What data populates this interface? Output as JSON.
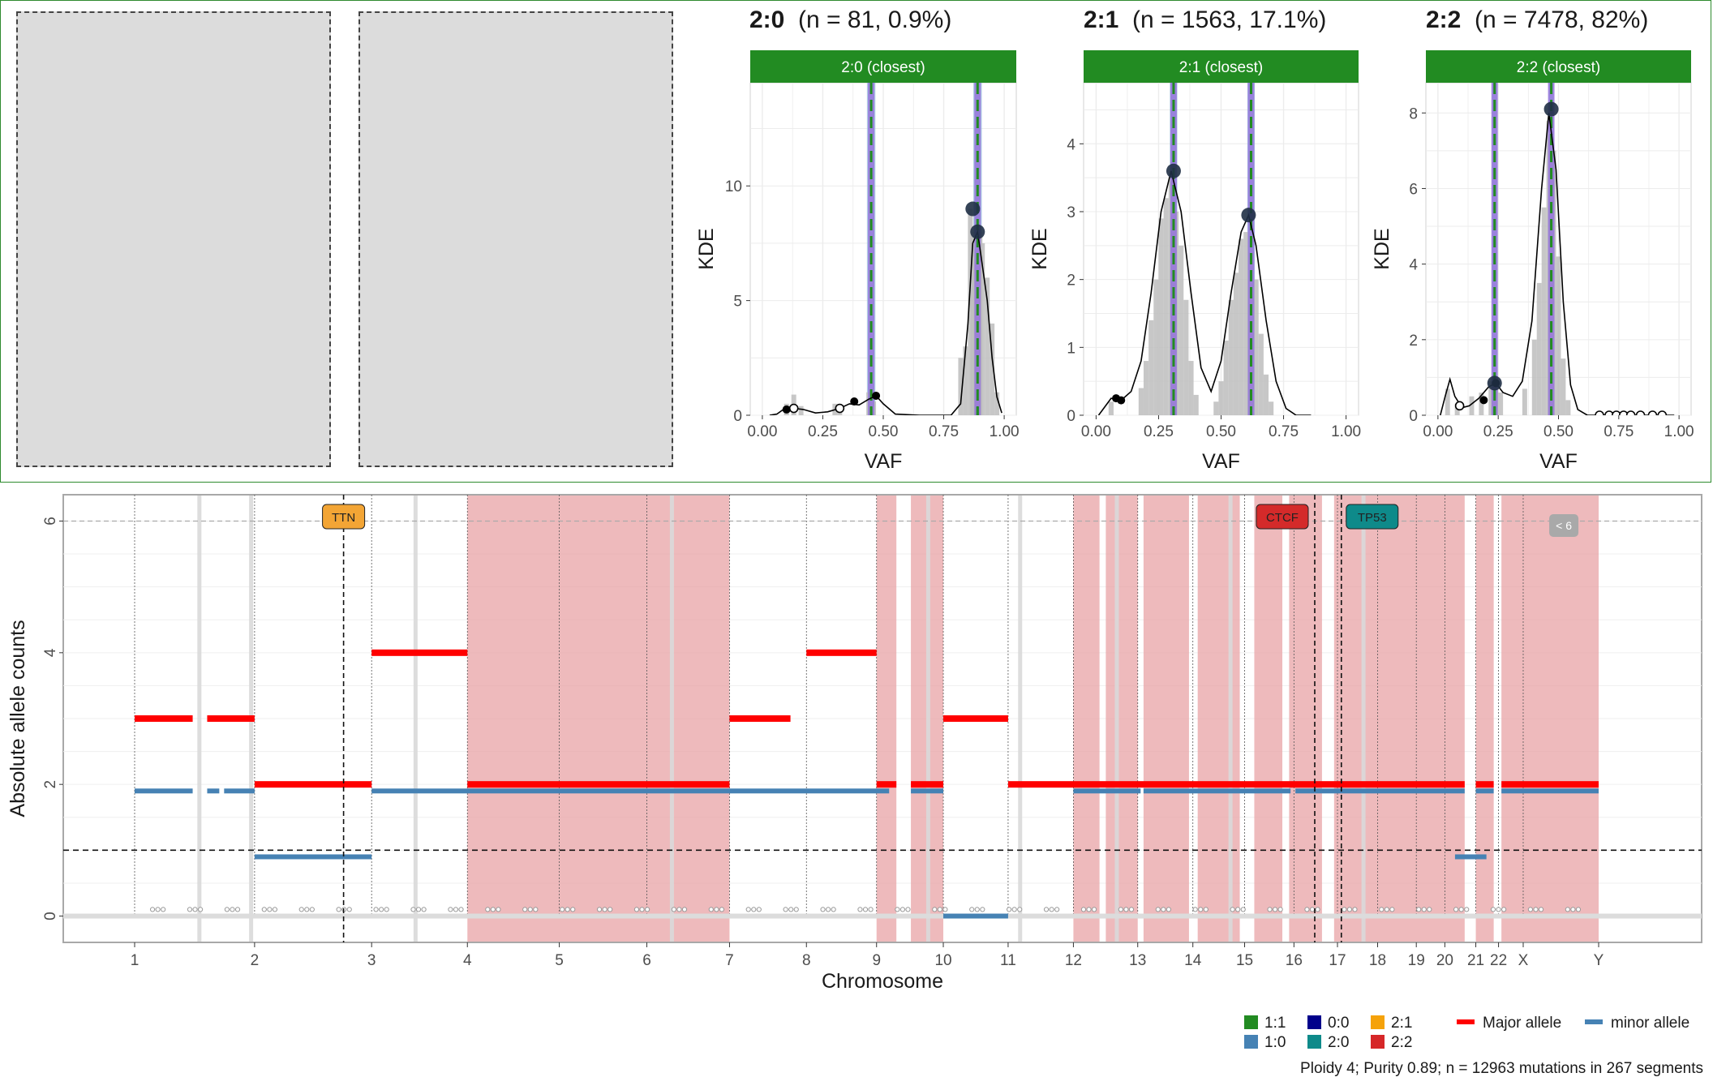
{
  "panels": [
    {
      "key": "2:0",
      "title_bold": "2:0",
      "title_rest": "(n = 81, 0.9%)",
      "strip": "2:0 (closest)",
      "ylim": [
        0,
        14.5
      ],
      "yticks": [
        0,
        5,
        10
      ],
      "peaks_expected": [
        0.45,
        0.89
      ],
      "peak_band_width": 0.035,
      "hist": [
        [
          0.1,
          0.5
        ],
        [
          0.13,
          0.9
        ],
        [
          0.16,
          0.4
        ],
        [
          0.3,
          0.5
        ],
        [
          0.32,
          0.3
        ],
        [
          0.44,
          1.0
        ],
        [
          0.46,
          0.6
        ],
        [
          0.82,
          2.5
        ],
        [
          0.84,
          3.0
        ],
        [
          0.86,
          9.0
        ],
        [
          0.87,
          8.0
        ],
        [
          0.88,
          7.0
        ],
        [
          0.9,
          8.0
        ],
        [
          0.91,
          7.5
        ],
        [
          0.93,
          6.0
        ],
        [
          0.95,
          4.0
        ],
        [
          0.97,
          1.0
        ]
      ],
      "kde": [
        [
          0.03,
          0.0
        ],
        [
          0.06,
          0.05
        ],
        [
          0.1,
          0.35
        ],
        [
          0.13,
          0.3
        ],
        [
          0.17,
          0.25
        ],
        [
          0.22,
          0.1
        ],
        [
          0.27,
          0.15
        ],
        [
          0.32,
          0.3
        ],
        [
          0.36,
          0.5
        ],
        [
          0.4,
          0.45
        ],
        [
          0.44,
          0.7
        ],
        [
          0.47,
          0.85
        ],
        [
          0.5,
          0.5
        ],
        [
          0.55,
          0.05
        ],
        [
          0.65,
          0.0
        ],
        [
          0.78,
          0.0
        ],
        [
          0.82,
          0.5
        ],
        [
          0.85,
          4.0
        ],
        [
          0.87,
          7.5
        ],
        [
          0.89,
          8.0
        ],
        [
          0.91,
          6.5
        ],
        [
          0.93,
          5.0
        ],
        [
          0.95,
          2.5
        ],
        [
          0.97,
          0.8
        ],
        [
          0.99,
          0.1
        ]
      ],
      "points_filled": [
        [
          0.1,
          0.25
        ],
        [
          0.38,
          0.6
        ],
        [
          0.47,
          0.85
        ]
      ],
      "points_open": [
        [
          0.13,
          0.3
        ],
        [
          0.32,
          0.3
        ]
      ],
      "points_big": [
        [
          0.87,
          9.0
        ],
        [
          0.89,
          8.0
        ]
      ]
    },
    {
      "key": "2:1",
      "title_bold": "2:1",
      "title_rest": "(n = 1563, 17.1%)",
      "strip": "2:1 (closest)",
      "ylim": [
        0,
        4.9
      ],
      "yticks": [
        0,
        1,
        2,
        3,
        4
      ],
      "peaks_expected": [
        0.31,
        0.62
      ],
      "peak_band_width": 0.03,
      "hist": [
        [
          0.06,
          0.2
        ],
        [
          0.18,
          0.4
        ],
        [
          0.2,
          0.8
        ],
        [
          0.22,
          1.4
        ],
        [
          0.24,
          2.0
        ],
        [
          0.26,
          2.9
        ],
        [
          0.28,
          3.2
        ],
        [
          0.3,
          3.5
        ],
        [
          0.32,
          3.0
        ],
        [
          0.34,
          2.5
        ],
        [
          0.36,
          1.7
        ],
        [
          0.38,
          0.8
        ],
        [
          0.4,
          0.3
        ],
        [
          0.48,
          0.2
        ],
        [
          0.5,
          0.5
        ],
        [
          0.52,
          1.1
        ],
        [
          0.54,
          1.7
        ],
        [
          0.56,
          2.1
        ],
        [
          0.58,
          2.6
        ],
        [
          0.6,
          2.7
        ],
        [
          0.62,
          2.4
        ],
        [
          0.64,
          2.0
        ],
        [
          0.66,
          1.2
        ],
        [
          0.68,
          0.6
        ],
        [
          0.7,
          0.2
        ]
      ],
      "kde": [
        [
          0.01,
          0.0
        ],
        [
          0.03,
          0.1
        ],
        [
          0.06,
          0.25
        ],
        [
          0.1,
          0.22
        ],
        [
          0.14,
          0.35
        ],
        [
          0.18,
          0.8
        ],
        [
          0.22,
          1.8
        ],
        [
          0.26,
          3.0
        ],
        [
          0.3,
          3.6
        ],
        [
          0.34,
          3.0
        ],
        [
          0.38,
          1.8
        ],
        [
          0.42,
          0.7
        ],
        [
          0.46,
          0.35
        ],
        [
          0.5,
          0.8
        ],
        [
          0.54,
          1.8
        ],
        [
          0.58,
          2.7
        ],
        [
          0.61,
          2.95
        ],
        [
          0.64,
          2.5
        ],
        [
          0.68,
          1.4
        ],
        [
          0.72,
          0.5
        ],
        [
          0.76,
          0.1
        ],
        [
          0.8,
          0.0
        ],
        [
          0.86,
          0.0
        ]
      ],
      "points_filled": [
        [
          0.08,
          0.25
        ],
        [
          0.1,
          0.22
        ]
      ],
      "points_open": [],
      "points_big": [
        [
          0.31,
          3.6
        ],
        [
          0.61,
          2.95
        ]
      ]
    },
    {
      "key": "2:2",
      "title_bold": "2:2",
      "title_rest": "(n = 7478, 82%)",
      "strip": "2:2 (closest)",
      "ylim": [
        0,
        8.8
      ],
      "yticks": [
        0,
        2,
        4,
        6,
        8
      ],
      "peaks_expected": [
        0.235,
        0.47
      ],
      "peak_band_width": 0.02,
      "hist": [
        [
          0.04,
          0.7
        ],
        [
          0.08,
          0.3
        ],
        [
          0.14,
          0.5
        ],
        [
          0.18,
          0.6
        ],
        [
          0.22,
          0.9
        ],
        [
          0.24,
          1.0
        ],
        [
          0.26,
          0.6
        ],
        [
          0.36,
          0.7
        ],
        [
          0.4,
          2.0
        ],
        [
          0.42,
          3.5
        ],
        [
          0.44,
          5.5
        ],
        [
          0.46,
          7.8
        ],
        [
          0.48,
          7.0
        ],
        [
          0.5,
          4.2
        ],
        [
          0.52,
          1.5
        ],
        [
          0.54,
          0.4
        ]
      ],
      "kde": [
        [
          0.01,
          0.0
        ],
        [
          0.03,
          0.5
        ],
        [
          0.05,
          0.95
        ],
        [
          0.07,
          0.5
        ],
        [
          0.1,
          0.2
        ],
        [
          0.13,
          0.25
        ],
        [
          0.17,
          0.45
        ],
        [
          0.21,
          0.75
        ],
        [
          0.24,
          0.85
        ],
        [
          0.27,
          0.6
        ],
        [
          0.31,
          0.5
        ],
        [
          0.35,
          0.9
        ],
        [
          0.39,
          2.5
        ],
        [
          0.43,
          6.0
        ],
        [
          0.46,
          8.0
        ],
        [
          0.49,
          6.5
        ],
        [
          0.52,
          3.0
        ],
        [
          0.55,
          0.8
        ],
        [
          0.58,
          0.15
        ],
        [
          0.62,
          0.0
        ],
        [
          0.7,
          0.0
        ],
        [
          0.98,
          0.0
        ]
      ],
      "points_filled": [
        [
          0.19,
          0.4
        ],
        [
          0.24,
          0.85
        ]
      ],
      "points_open": [
        [
          0.09,
          0.25
        ],
        [
          0.67,
          0.0
        ],
        [
          0.71,
          0.0
        ],
        [
          0.74,
          0.0
        ],
        [
          0.77,
          0.0
        ],
        [
          0.8,
          0.0
        ],
        [
          0.84,
          0.0
        ],
        [
          0.89,
          0.0
        ],
        [
          0.93,
          0.0
        ]
      ],
      "points_big": [
        [
          0.235,
          0.85
        ],
        [
          0.47,
          8.1
        ]
      ]
    }
  ],
  "kde_axis": {
    "xlabel": "VAF",
    "ylabel": "KDE",
    "xticks": [
      "0.00",
      "0.25",
      "0.50",
      "0.75",
      "1.00"
    ]
  },
  "genome": {
    "ylabel": "Absolute allele counts",
    "xlabel": "Chromosome",
    "yticks": [
      0,
      2,
      4,
      6
    ],
    "ylim": [
      -0.4,
      6.4
    ],
    "chromosomes": [
      "1",
      "2",
      "3",
      "4",
      "5",
      "6",
      "7",
      "8",
      "9",
      "10",
      "11",
      "12",
      "13",
      "14",
      "15",
      "16",
      "17",
      "18",
      "19",
      "20",
      "21",
      "22",
      "X",
      "Y"
    ],
    "chrom_bounds": [
      0,
      248,
      490,
      688,
      878,
      1059,
      1230,
      1389,
      1534,
      1672,
      1806,
      1941,
      2074,
      2188,
      2295,
      2397,
      2487,
      2570,
      2650,
      2709,
      2773,
      2820,
      2871,
      3027,
      3084
    ],
    "centromeres": [
      133,
      240,
      580,
      1110,
      1640,
      1830,
      2030,
      2265,
      2540
    ],
    "gene_marks": [
      {
        "label": "TTN",
        "pos": 432,
        "color": "#f3a535"
      },
      {
        "label": "CTCF",
        "pos": 2440,
        "color": "#d42a2a"
      },
      {
        "label": "TP53",
        "pos": 2495,
        "color": "#0e8a8a"
      }
    ],
    "cap_label": "< 6",
    "cap_pos": 2955,
    "ploidy_line": 1,
    "cap_line": 6,
    "shaded": [
      [
        688,
        1230
      ],
      [
        1534,
        1575
      ],
      [
        1605,
        1672
      ],
      [
        1941,
        1995
      ],
      [
        2008,
        2074
      ],
      [
        2086,
        2180
      ],
      [
        2198,
        2285
      ],
      [
        2315,
        2373
      ],
      [
        2387,
        2455
      ],
      [
        2480,
        2750
      ],
      [
        2773,
        2810
      ],
      [
        2826,
        3027
      ]
    ],
    "major": [
      [
        0,
        120,
        3
      ],
      [
        150,
        248,
        3
      ],
      [
        248,
        490,
        2
      ],
      [
        490,
        688,
        4
      ],
      [
        688,
        1230,
        2
      ],
      [
        1230,
        1356,
        3
      ],
      [
        1389,
        1534,
        4
      ],
      [
        1534,
        1575,
        2
      ],
      [
        1605,
        1672,
        2
      ],
      [
        1672,
        1806,
        3
      ],
      [
        1806,
        2750,
        2
      ],
      [
        2773,
        2810,
        2
      ],
      [
        2826,
        3027,
        2
      ]
    ],
    "minor": [
      [
        0,
        120,
        1.9
      ],
      [
        150,
        175,
        1.9
      ],
      [
        185,
        248,
        1.9
      ],
      [
        248,
        490,
        0.9
      ],
      [
        490,
        1560,
        1.9
      ],
      [
        1605,
        1672,
        1.9
      ],
      [
        1672,
        1806,
        0
      ],
      [
        1941,
        2080,
        1.9
      ],
      [
        2086,
        2390,
        1.9
      ],
      [
        2400,
        2750,
        1.9
      ],
      [
        2730,
        2795,
        0.9
      ],
      [
        2773,
        2810,
        1.9
      ],
      [
        2826,
        3027,
        1.9
      ]
    ],
    "legend": [
      {
        "label": "1:1",
        "color": "#228b22"
      },
      {
        "label": "1:0",
        "color": "#4682b4"
      },
      {
        "label": "0:0",
        "color": "#00008b"
      },
      {
        "label": "2:0",
        "color": "#0e8a8a"
      },
      {
        "label": "2:1",
        "color": "#f5a20a"
      },
      {
        "label": "2:2",
        "color": "#d62728"
      }
    ],
    "legend_lines": [
      {
        "label": "Major allele",
        "color": "#ff0000"
      },
      {
        "label": "minor allele",
        "color": "#4682b4"
      }
    ],
    "caption": "Ploidy 4; Purity  0.89; n = 12963 mutations in 267 segments"
  },
  "colors": {
    "strip": "#228b22",
    "peak_band": "#9fbfdf",
    "peak_line": "#9370db",
    "expected": "#228b22",
    "hist": "#bdbdbd",
    "shade": "#e8a3a6",
    "major": "#ff0000",
    "minor": "#4682b4"
  }
}
